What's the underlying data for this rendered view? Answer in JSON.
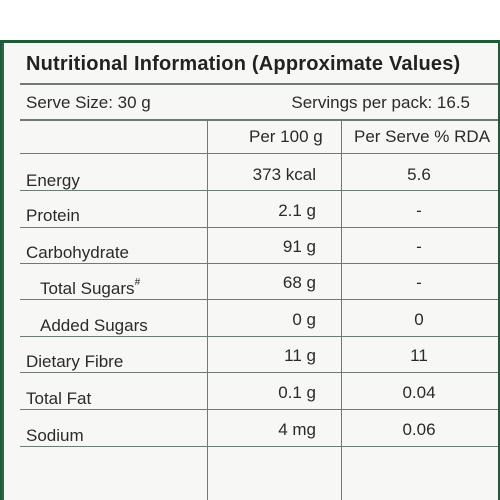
{
  "title": "Nutritional Information (Approximate Values)",
  "serve_size": "Serve Size: 30 g",
  "servings_per_pack": "Servings per pack: 16.5",
  "columns": {
    "per_100g": "Per 100 g",
    "per_serve_rda": "Per Serve % RDA"
  },
  "rows": [
    {
      "name": "Energy",
      "per_100g": "373 kcal",
      "rda": "5.6"
    },
    {
      "name": "Protein",
      "per_100g": "2.1 g",
      "rda": "-"
    },
    {
      "name": "Carbohydrate",
      "per_100g": "91 g",
      "rda": "-"
    },
    {
      "name": "Total Sugars",
      "marker": "#",
      "per_100g": "68 g",
      "rda": "-"
    },
    {
      "name": "Added Sugars",
      "per_100g": "0 g",
      "rda": "0"
    },
    {
      "name": "Dietary Fibre",
      "per_100g": "11 g",
      "rda": "11"
    },
    {
      "name": "Total Fat",
      "per_100g": "0.1 g",
      "rda": "0.04"
    },
    {
      "name": "Sodium",
      "per_100g": "4 mg",
      "rda": "0.06"
    }
  ],
  "colors": {
    "panel_background": "#1f5a3a",
    "label_background": "#f7f8f5",
    "rule": "#6e7a72"
  }
}
